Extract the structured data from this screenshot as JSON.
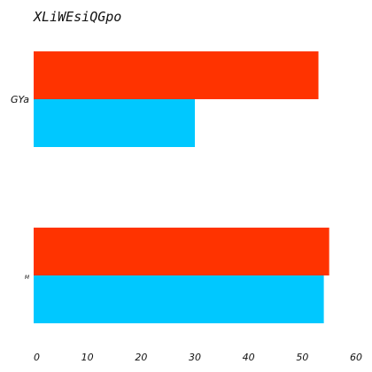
{
  "chart_data": {
    "type": "bar",
    "orientation": "horizontal",
    "title": "XLiWEsiQGpo",
    "xlabel": "",
    "ylabel": "",
    "categories": [
      "GYa",
      "M"
    ],
    "series": [
      {
        "color": "#ff3300",
        "values": [
          53,
          55
        ]
      },
      {
        "color": "#00c8ff",
        "values": [
          30,
          54
        ]
      }
    ],
    "xlim": [
      0,
      60
    ],
    "xticks": [
      0,
      10,
      20,
      30,
      40,
      50,
      60
    ],
    "grid": false,
    "legend": "none"
  }
}
